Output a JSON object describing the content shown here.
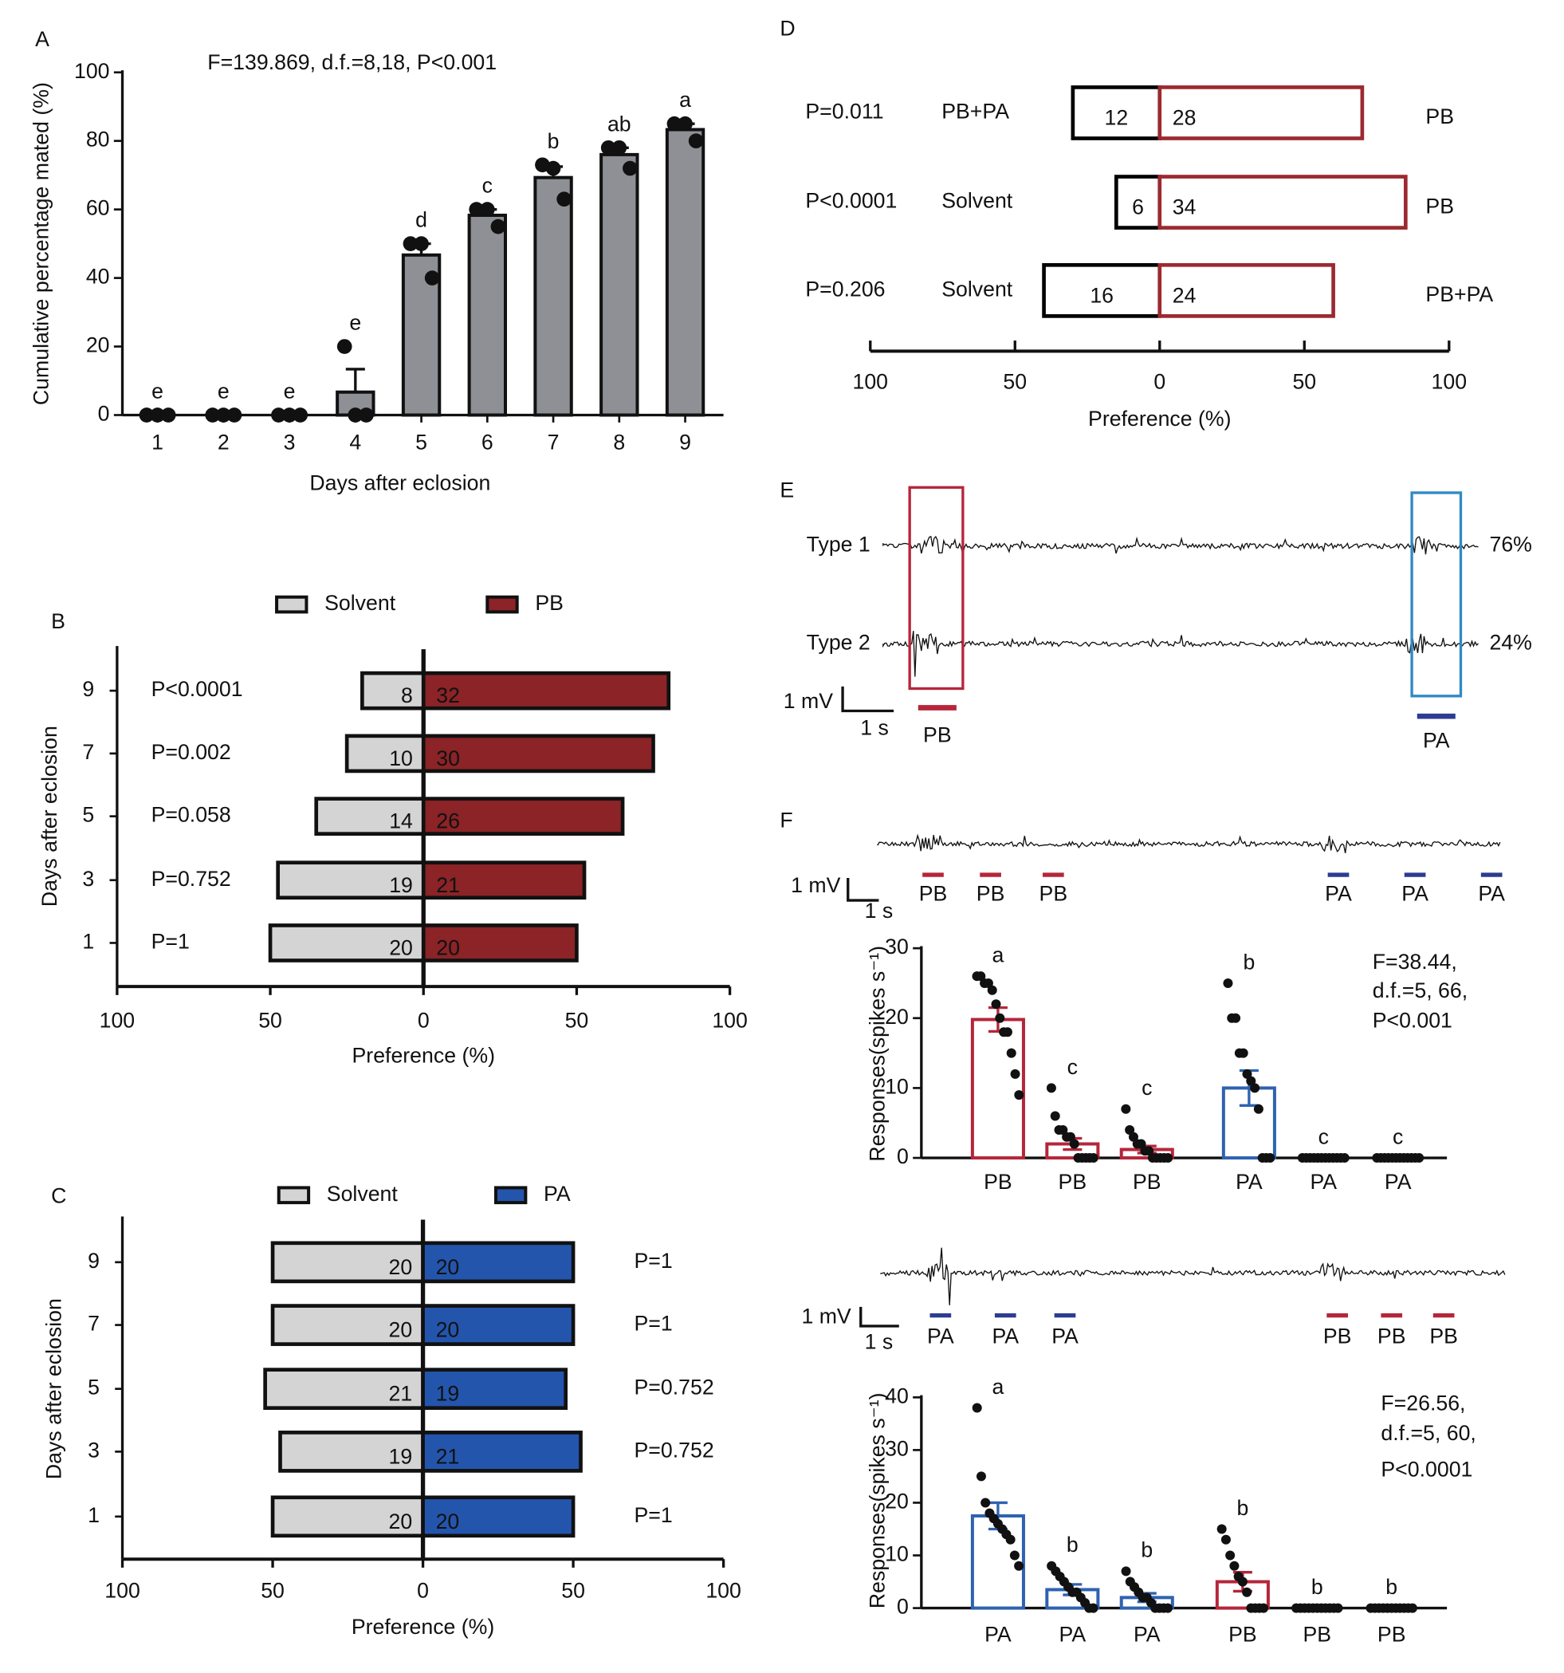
{
  "chart_data": [
    {
      "type": "bar",
      "panel": "A",
      "annotation": "F=139.869, d.f.=8,18, P<0.001",
      "categories": [
        "1",
        "2",
        "3",
        "4",
        "5",
        "6",
        "7",
        "8",
        "9"
      ],
      "values": [
        0,
        0,
        0,
        6.7,
        46.7,
        58.3,
        69.3,
        76,
        83.3
      ],
      "errors": [
        0,
        0,
        0,
        6.7,
        3.3,
        1.7,
        3.2,
        2,
        1.7
      ],
      "points": [
        [
          0,
          0,
          0
        ],
        [
          0,
          0,
          0
        ],
        [
          0,
          0,
          0
        ],
        [
          20,
          0,
          0
        ],
        [
          50,
          50,
          40
        ],
        [
          60,
          60,
          55
        ],
        [
          73,
          72,
          63
        ],
        [
          78,
          78,
          72
        ],
        [
          85,
          85,
          80
        ]
      ],
      "letters": [
        "e",
        "e",
        "e",
        "e",
        "d",
        "c",
        "b",
        "ab",
        "a"
      ],
      "color": "#8e9096",
      "filled": true,
      "xlabel": "Days after eclosion",
      "ylabel": "Cumulative percentage mated (%)",
      "ylim": [
        0,
        100
      ],
      "yticks": [
        0,
        20,
        40,
        60,
        80,
        100
      ]
    },
    {
      "type": "diverging_bar",
      "panel": "B",
      "categories": [
        "9",
        "7",
        "5",
        "3",
        "1"
      ],
      "p_values": [
        "P<0.0001",
        "P=0.002",
        "P=0.058",
        "P=0.752",
        "P=1"
      ],
      "series": [
        {
          "name": "Solvent",
          "color": "#d4d4d4",
          "values": [
            -20,
            -25,
            -35,
            -47.5,
            -50
          ],
          "counts": [
            8,
            10,
            14,
            19,
            20
          ]
        },
        {
          "name": "PB",
          "color": "#8b2327",
          "values": [
            80,
            75,
            65,
            52.5,
            50
          ],
          "counts": [
            32,
            30,
            26,
            21,
            20
          ]
        }
      ],
      "filled": true,
      "legend": "top",
      "xlim": [
        -100,
        100
      ],
      "xticks": [
        {
          "value": -100,
          "label": "100"
        },
        {
          "value": -50,
          "label": "50"
        },
        0,
        50,
        100
      ],
      "xlabel": "Preference (%)",
      "ylabel": "Days after eclosion"
    },
    {
      "type": "diverging_bar",
      "panel": "C",
      "categories": [
        "9",
        "7",
        "5",
        "3",
        "1"
      ],
      "p_values": [
        "P=1",
        "P=1",
        "P=0.752",
        "P=0.752",
        "P=1"
      ],
      "series": [
        {
          "name": "Solvent",
          "color": "#d4d4d4",
          "values": [
            -50,
            -50,
            -52.5,
            -47.5,
            -50
          ],
          "counts": [
            20,
            20,
            21,
            19,
            20
          ]
        },
        {
          "name": "PA",
          "color": "#2455ad",
          "values": [
            50,
            50,
            47.5,
            52.5,
            50
          ],
          "counts": [
            20,
            20,
            19,
            21,
            20
          ]
        }
      ],
      "filled": true,
      "legend": "top",
      "xlim": [
        -100,
        100
      ],
      "xticks": [
        {
          "value": -100,
          "label": "100"
        },
        {
          "value": -50,
          "label": "50"
        },
        0,
        50,
        100
      ],
      "xlabel": "Preference (%)",
      "ylabel": "Days after eclosion"
    },
    {
      "type": "diverging_bar",
      "panel": "D",
      "left_labels": [
        "PB+PA",
        "Solvent",
        "Solvent"
      ],
      "right_labels": [
        "PB",
        "PB",
        "PB+PA"
      ],
      "p_values": [
        "P=0.011",
        "P<0.0001",
        "P=0.206"
      ],
      "series": [
        {
          "color": "#000000",
          "values": [
            -30,
            -15,
            -40
          ],
          "counts": [
            12,
            6,
            16
          ]
        },
        {
          "color": "#9b2a30",
          "values": [
            70,
            85,
            60
          ],
          "counts": [
            28,
            34,
            24
          ]
        }
      ],
      "filled": false,
      "xlim": [
        -100,
        100
      ],
      "xticks": [
        {
          "value": -100,
          "label": "100"
        },
        {
          "value": -50,
          "label": "50"
        },
        0,
        50,
        100
      ],
      "xlabel": "Preference (%)"
    },
    {
      "type": "trace",
      "panel": "E",
      "categories": [
        "Type 1",
        "Type 2"
      ],
      "values": [
        76,
        24
      ],
      "value_labels": [
        "76%",
        "24%"
      ],
      "scale_bar": {
        "y": "1 mV",
        "x": "1 s"
      },
      "stimuli": [
        {
          "label": "PB",
          "color": "#b5263a",
          "box_color": "#b5263a"
        },
        {
          "label": "PA",
          "color": "#2d3c91",
          "box_color": "#2f8ac4"
        }
      ]
    },
    {
      "type": "bar",
      "panel": "F",
      "scale_bar": {
        "y": "1 mV",
        "x": "1 s"
      },
      "stimuli": [
        {
          "label": "PB",
          "color": "#b5263a"
        },
        {
          "label": "PB",
          "color": "#b5263a"
        },
        {
          "label": "PB",
          "color": "#b5263a"
        },
        {
          "label": "PA",
          "color": "#2d3c91"
        },
        {
          "label": "PA",
          "color": "#2d3c91"
        },
        {
          "label": "PA",
          "color": "#2d3c91"
        }
      ],
      "annotation": [
        "F=38.44,",
        "d.f.=5, 66,",
        "P<0.001"
      ],
      "categories": [
        "PB",
        "PB",
        "PB",
        "PA",
        "PA",
        "PA"
      ],
      "values": [
        19.8,
        2,
        1.2,
        10,
        0,
        0
      ],
      "errors": [
        1.7,
        0.8,
        0.5,
        2.5,
        0,
        0
      ],
      "points": [
        [
          26,
          26,
          25,
          25,
          24,
          22,
          20,
          18,
          18,
          15,
          12,
          9
        ],
        [
          10,
          6,
          4,
          4,
          3,
          3,
          2,
          0,
          0,
          0,
          0,
          0
        ],
        [
          7,
          4,
          3,
          2,
          2,
          1,
          1,
          0,
          0,
          0,
          0,
          0
        ],
        [
          25,
          20,
          20,
          15,
          15,
          12,
          11,
          10,
          7,
          0,
          0,
          0
        ],
        [
          0,
          0,
          0,
          0,
          0,
          0,
          0,
          0,
          0,
          0,
          0,
          0
        ],
        [
          0,
          0,
          0,
          0,
          0,
          0,
          0,
          0,
          0,
          0,
          0,
          0
        ]
      ],
      "letters": [
        "a",
        "c",
        "c",
        "b",
        "c",
        "c"
      ],
      "colors": [
        "#b5263a",
        "#b5263a",
        "#b5263a",
        "#2f62b0",
        "#2f62b0",
        "#2f62b0"
      ],
      "filled": false,
      "ylabel": "Responses(spikes s⁻¹)",
      "ylim": [
        0,
        30
      ],
      "yticks": [
        0,
        10,
        20,
        30
      ]
    },
    {
      "type": "bar",
      "scale_bar": {
        "y": "1 mV",
        "x": "1 s"
      },
      "stimuli": [
        {
          "label": "PA",
          "color": "#2d3c91"
        },
        {
          "label": "PA",
          "color": "#2d3c91"
        },
        {
          "label": "PA",
          "color": "#2d3c91"
        },
        {
          "label": "PB",
          "color": "#b5263a"
        },
        {
          "label": "PB",
          "color": "#b5263a"
        },
        {
          "label": "PB",
          "color": "#b5263a"
        }
      ],
      "annotation": [
        "F=26.56,",
        "d.f.=5, 60,",
        "P<0.0001"
      ],
      "categories": [
        "PA",
        "PA",
        "PA",
        "PB",
        "PB",
        "PB"
      ],
      "values": [
        17.5,
        3.5,
        2,
        5,
        0,
        0
      ],
      "errors": [
        2.5,
        1,
        0.8,
        1.8,
        0,
        0
      ],
      "points": [
        [
          38,
          25,
          20,
          18,
          17,
          16,
          15,
          14,
          13,
          10,
          8
        ],
        [
          8,
          7,
          6,
          5,
          4,
          3,
          3,
          2,
          1,
          0,
          0
        ],
        [
          7,
          5,
          4,
          3,
          2,
          2,
          1,
          0,
          0,
          0,
          0
        ],
        [
          15,
          13,
          10,
          8,
          6,
          5,
          3,
          0,
          0,
          0,
          0
        ],
        [
          0,
          0,
          0,
          0,
          0,
          0,
          0,
          0,
          0,
          0,
          0
        ],
        [
          0,
          0,
          0,
          0,
          0,
          0,
          0,
          0,
          0,
          0,
          0
        ]
      ],
      "letters": [
        "a",
        "b",
        "b",
        "b",
        "b",
        "b"
      ],
      "colors": [
        "#2f62b0",
        "#2f62b0",
        "#2f62b0",
        "#b5263a",
        "#b5263a",
        "#b5263a"
      ],
      "filled": false,
      "ylabel": "Responses(spikes s⁻¹)",
      "ylim": [
        0,
        40
      ],
      "yticks": [
        0,
        10,
        20,
        30,
        40
      ]
    }
  ]
}
